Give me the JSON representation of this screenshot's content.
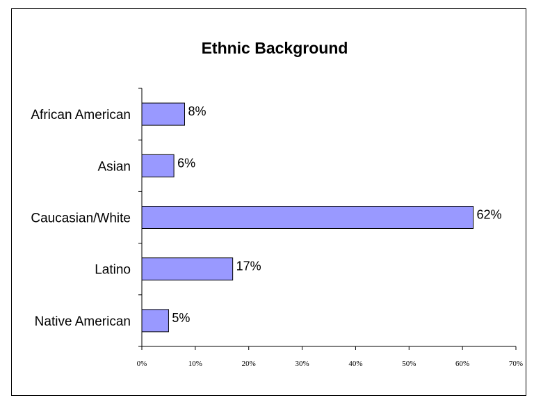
{
  "chart_data": {
    "type": "bar",
    "orientation": "horizontal",
    "title": "Ethnic Background",
    "xlabel": "",
    "ylabel": "",
    "categories": [
      "African American",
      "Asian",
      "Caucasian/White",
      "Latino",
      "Native American"
    ],
    "values": [
      8,
      6,
      62,
      17,
      5
    ],
    "data_labels": [
      "8%",
      "6%",
      "62%",
      "17%",
      "5%"
    ],
    "xlim": [
      0,
      70
    ],
    "x_ticks": [
      0,
      10,
      20,
      30,
      40,
      50,
      60,
      70
    ],
    "x_tick_labels": [
      "0%",
      "10%",
      "20%",
      "30%",
      "40%",
      "50%",
      "60%",
      "70%"
    ],
    "grid": false,
    "legend": "none",
    "bar_color": "#9999ff"
  }
}
